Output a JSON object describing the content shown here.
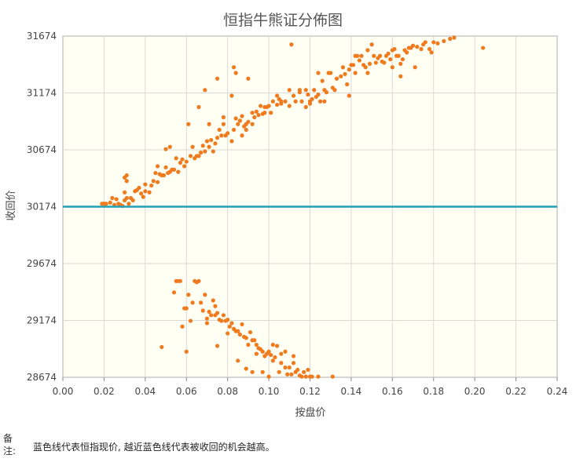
{
  "chart_data": {
    "type": "scatter",
    "title": "恒指牛熊证分佈图",
    "xlabel": "按盘价",
    "ylabel": "收回价",
    "xlim": [
      0.0,
      0.24
    ],
    "ylim": [
      28674,
      31674
    ],
    "xticks": [
      "0.00",
      "0.02",
      "0.04",
      "0.06",
      "0.08",
      "0.10",
      "0.12",
      "0.14",
      "0.16",
      "0.18",
      "0.20",
      "0.22",
      "0.24"
    ],
    "yticks": [
      "28674",
      "29174",
      "29674",
      "30174",
      "30674",
      "31174",
      "31674"
    ],
    "grid": true,
    "reference_line": {
      "y": 30174,
      "color": "#21a1b8"
    },
    "point_color": "#f07a1e",
    "series": [
      {
        "values": [
          [
            0.019,
            30200
          ],
          [
            0.02,
            30200
          ],
          [
            0.021,
            30200
          ],
          [
            0.023,
            30210
          ],
          [
            0.024,
            30250
          ],
          [
            0.025,
            30190
          ],
          [
            0.026,
            30240
          ],
          [
            0.027,
            30200
          ],
          [
            0.028,
            30190
          ],
          [
            0.029,
            30180
          ],
          [
            0.03,
            30300
          ],
          [
            0.03,
            30230
          ],
          [
            0.031,
            30250
          ],
          [
            0.031,
            30400
          ],
          [
            0.032,
            30200
          ],
          [
            0.033,
            30250
          ],
          [
            0.034,
            30230
          ],
          [
            0.035,
            30310
          ],
          [
            0.036,
            30320
          ],
          [
            0.037,
            30340
          ],
          [
            0.038,
            30290
          ],
          [
            0.039,
            30260
          ],
          [
            0.04,
            30370
          ],
          [
            0.042,
            30300
          ],
          [
            0.043,
            30360
          ],
          [
            0.044,
            30400
          ],
          [
            0.045,
            30470
          ],
          [
            0.046,
            30390
          ],
          [
            0.047,
            30460
          ],
          [
            0.048,
            30450
          ],
          [
            0.049,
            30450
          ],
          [
            0.05,
            30520
          ],
          [
            0.051,
            30470
          ],
          [
            0.052,
            30480
          ],
          [
            0.053,
            30500
          ],
          [
            0.054,
            30500
          ],
          [
            0.055,
            30600
          ],
          [
            0.056,
            30480
          ],
          [
            0.057,
            30560
          ],
          [
            0.058,
            30590
          ],
          [
            0.059,
            30530
          ],
          [
            0.06,
            30570
          ],
          [
            0.062,
            30620
          ],
          [
            0.063,
            30700
          ],
          [
            0.064,
            30600
          ],
          [
            0.065,
            30620
          ],
          [
            0.066,
            30620
          ],
          [
            0.067,
            30650
          ],
          [
            0.068,
            30710
          ],
          [
            0.069,
            30660
          ],
          [
            0.07,
            30750
          ],
          [
            0.071,
            30700
          ],
          [
            0.072,
            30760
          ],
          [
            0.073,
            30660
          ],
          [
            0.074,
            30730
          ],
          [
            0.075,
            30780
          ],
          [
            0.076,
            30850
          ],
          [
            0.077,
            30800
          ],
          [
            0.078,
            30900
          ],
          [
            0.079,
            30800
          ],
          [
            0.08,
            30820
          ],
          [
            0.082,
            30750
          ],
          [
            0.083,
            30850
          ],
          [
            0.084,
            30950
          ],
          [
            0.085,
            30900
          ],
          [
            0.086,
            30930
          ],
          [
            0.087,
            30970
          ],
          [
            0.088,
            30880
          ],
          [
            0.089,
            30900
          ],
          [
            0.09,
            30920
          ],
          [
            0.092,
            31000
          ],
          [
            0.093,
            30960
          ],
          [
            0.094,
            31010
          ],
          [
            0.095,
            30980
          ],
          [
            0.096,
            31060
          ],
          [
            0.097,
            30990
          ],
          [
            0.098,
            31000
          ],
          [
            0.099,
            31050
          ],
          [
            0.1,
            31060
          ],
          [
            0.102,
            31100
          ],
          [
            0.104,
            31070
          ],
          [
            0.105,
            31120
          ],
          [
            0.106,
            31080
          ],
          [
            0.108,
            31100
          ],
          [
            0.11,
            31060
          ],
          [
            0.112,
            31150
          ],
          [
            0.113,
            31100
          ],
          [
            0.115,
            31200
          ],
          [
            0.116,
            31100
          ],
          [
            0.118,
            31200
          ],
          [
            0.119,
            31160
          ],
          [
            0.12,
            31100
          ],
          [
            0.121,
            31120
          ],
          [
            0.122,
            31200
          ],
          [
            0.123,
            31140
          ],
          [
            0.124,
            31160
          ],
          [
            0.125,
            31100
          ],
          [
            0.126,
            31280
          ],
          [
            0.127,
            31200
          ],
          [
            0.128,
            31180
          ],
          [
            0.13,
            31350
          ],
          [
            0.131,
            31220
          ],
          [
            0.133,
            31300
          ],
          [
            0.135,
            31320
          ],
          [
            0.136,
            31400
          ],
          [
            0.137,
            31340
          ],
          [
            0.138,
            31250
          ],
          [
            0.139,
            31380
          ],
          [
            0.14,
            31420
          ],
          [
            0.141,
            31420
          ],
          [
            0.142,
            31350
          ],
          [
            0.143,
            31500
          ],
          [
            0.144,
            31460
          ],
          [
            0.145,
            31500
          ],
          [
            0.146,
            31420
          ],
          [
            0.147,
            31400
          ],
          [
            0.148,
            31550
          ],
          [
            0.149,
            31430
          ],
          [
            0.15,
            31600
          ],
          [
            0.152,
            31440
          ],
          [
            0.153,
            31480
          ],
          [
            0.154,
            31500
          ],
          [
            0.155,
            31450
          ],
          [
            0.156,
            31440
          ],
          [
            0.157,
            31500
          ],
          [
            0.158,
            31520
          ],
          [
            0.159,
            31470
          ],
          [
            0.16,
            31550
          ],
          [
            0.161,
            31560
          ],
          [
            0.162,
            31500
          ],
          [
            0.163,
            31500
          ],
          [
            0.164,
            31430
          ],
          [
            0.165,
            31470
          ],
          [
            0.166,
            31550
          ],
          [
            0.167,
            31530
          ],
          [
            0.168,
            31570
          ],
          [
            0.169,
            31570
          ],
          [
            0.17,
            31590
          ],
          [
            0.172,
            31580
          ],
          [
            0.174,
            31560
          ],
          [
            0.175,
            31600
          ],
          [
            0.176,
            31620
          ],
          [
            0.178,
            31560
          ],
          [
            0.18,
            31620
          ],
          [
            0.182,
            31610
          ],
          [
            0.185,
            31630
          ],
          [
            0.188,
            31650
          ],
          [
            0.19,
            31660
          ],
          [
            0.204,
            31570
          ],
          [
            0.03,
            30430
          ],
          [
            0.031,
            30450
          ],
          [
            0.04,
            30310
          ],
          [
            0.046,
            30530
          ],
          [
            0.05,
            30680
          ],
          [
            0.052,
            30700
          ],
          [
            0.061,
            30900
          ],
          [
            0.066,
            31050
          ],
          [
            0.069,
            31200
          ],
          [
            0.071,
            30900
          ],
          [
            0.075,
            31300
          ],
          [
            0.078,
            30960
          ],
          [
            0.082,
            31150
          ],
          [
            0.083,
            31400
          ],
          [
            0.084,
            31350
          ],
          [
            0.087,
            30800
          ],
          [
            0.089,
            30850
          ],
          [
            0.09,
            31300
          ],
          [
            0.092,
            30900
          ],
          [
            0.098,
            31050
          ],
          [
            0.101,
            31000
          ],
          [
            0.104,
            31150
          ],
          [
            0.106,
            31100
          ],
          [
            0.11,
            31200
          ],
          [
            0.111,
            31600
          ],
          [
            0.115,
            31180
          ],
          [
            0.118,
            31050
          ],
          [
            0.12,
            31080
          ],
          [
            0.124,
            31350
          ],
          [
            0.127,
            31100
          ],
          [
            0.129,
            31350
          ],
          [
            0.132,
            31200
          ],
          [
            0.139,
            31150
          ],
          [
            0.142,
            31500
          ],
          [
            0.148,
            31350
          ],
          [
            0.151,
            31500
          ],
          [
            0.16,
            31400
          ],
          [
            0.164,
            31320
          ],
          [
            0.171,
            31400
          ],
          [
            0.179,
            31530
          ]
        ]
      },
      {
        "values": [
          [
            0.048,
            28940
          ],
          [
            0.054,
            29420
          ],
          [
            0.055,
            29520
          ],
          [
            0.056,
            29520
          ],
          [
            0.057,
            29520
          ],
          [
            0.058,
            29120
          ],
          [
            0.059,
            29280
          ],
          [
            0.06,
            29280
          ],
          [
            0.06,
            28900
          ],
          [
            0.061,
            29400
          ],
          [
            0.062,
            29170
          ],
          [
            0.063,
            29330
          ],
          [
            0.064,
            29520
          ],
          [
            0.065,
            29510
          ],
          [
            0.066,
            29520
          ],
          [
            0.067,
            29330
          ],
          [
            0.068,
            29260
          ],
          [
            0.069,
            29400
          ],
          [
            0.07,
            29190
          ],
          [
            0.07,
            29150
          ],
          [
            0.071,
            29250
          ],
          [
            0.072,
            29220
          ],
          [
            0.073,
            29350
          ],
          [
            0.074,
            29300
          ],
          [
            0.074,
            29220
          ],
          [
            0.075,
            28950
          ],
          [
            0.075,
            29240
          ],
          [
            0.076,
            29180
          ],
          [
            0.077,
            29170
          ],
          [
            0.078,
            29220
          ],
          [
            0.079,
            29170
          ],
          [
            0.08,
            29060
          ],
          [
            0.08,
            29180
          ],
          [
            0.081,
            29120
          ],
          [
            0.082,
            29150
          ],
          [
            0.083,
            29100
          ],
          [
            0.084,
            29080
          ],
          [
            0.085,
            29080
          ],
          [
            0.086,
            29050
          ],
          [
            0.087,
            29140
          ],
          [
            0.088,
            29030
          ],
          [
            0.089,
            29020
          ],
          [
            0.09,
            28960
          ],
          [
            0.091,
            29070
          ],
          [
            0.092,
            29000
          ],
          [
            0.093,
            29000
          ],
          [
            0.094,
            28960
          ],
          [
            0.095,
            28930
          ],
          [
            0.096,
            28920
          ],
          [
            0.097,
            28900
          ],
          [
            0.098,
            28860
          ],
          [
            0.099,
            28880
          ],
          [
            0.1,
            28900
          ],
          [
            0.101,
            28870
          ],
          [
            0.102,
            28820
          ],
          [
            0.103,
            28850
          ],
          [
            0.104,
            28950
          ],
          [
            0.105,
            28720
          ],
          [
            0.106,
            28800
          ],
          [
            0.108,
            28760
          ],
          [
            0.109,
            28700
          ],
          [
            0.11,
            28760
          ],
          [
            0.111,
            28700
          ],
          [
            0.112,
            28860
          ],
          [
            0.113,
            28720
          ],
          [
            0.114,
            28740
          ],
          [
            0.115,
            28690
          ],
          [
            0.116,
            28680
          ],
          [
            0.117,
            28720
          ],
          [
            0.118,
            28680
          ],
          [
            0.12,
            28680
          ],
          [
            0.121,
            28680
          ],
          [
            0.124,
            28680
          ],
          [
            0.131,
            28680
          ],
          [
            0.085,
            28820
          ],
          [
            0.089,
            28750
          ],
          [
            0.092,
            28720
          ],
          [
            0.097,
            28720
          ],
          [
            0.1,
            28680
          ],
          [
            0.112,
            28800
          ],
          [
            0.102,
            28960
          ],
          [
            0.106,
            28880
          ],
          [
            0.108,
            28900
          ],
          [
            0.119,
            28740
          ],
          [
            0.094,
            28880
          ]
        ]
      }
    ]
  },
  "note": {
    "label": "备注:",
    "text": "蓝色线代表恒指现价, 越近蓝色线代表被收回的机会越高。"
  }
}
